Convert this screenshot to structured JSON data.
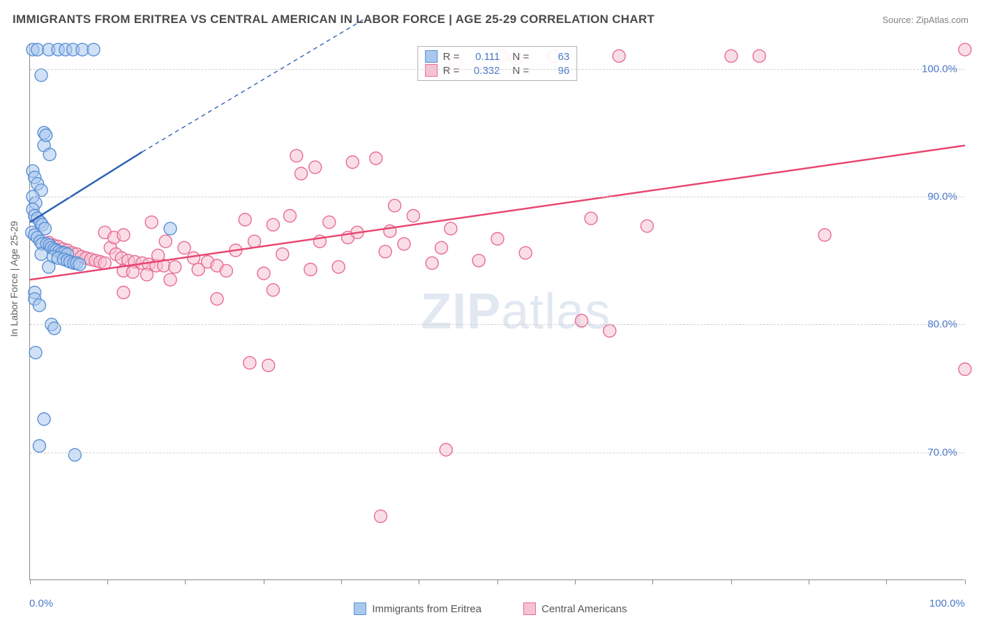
{
  "title": "IMMIGRANTS FROM ERITREA VS CENTRAL AMERICAN IN LABOR FORCE | AGE 25-29 CORRELATION CHART",
  "source": "Source: ZipAtlas.com",
  "y_axis_title": "In Labor Force | Age 25-29",
  "watermark_a": "ZIP",
  "watermark_b": "atlas",
  "chart": {
    "type": "scatter",
    "background_color": "#ffffff",
    "grid_color": "#cfcfcf",
    "axis_color": "#888888",
    "label_color": "#4a78c8",
    "xlim": [
      0,
      100
    ],
    "ylim": [
      60,
      102
    ],
    "y_ticks": [
      70,
      80,
      90,
      100
    ],
    "y_tick_labels": [
      "70.0%",
      "80.0%",
      "90.0%",
      "100.0%"
    ],
    "x_minor_ticks": [
      0,
      8.3,
      16.6,
      25,
      33.3,
      41.6,
      50,
      58.3,
      66.6,
      75,
      83.3,
      91.6,
      100
    ],
    "x_tick_labels": [
      {
        "pos": 0,
        "label": "0.0%"
      },
      {
        "pos": 100,
        "label": "100.0%"
      }
    ],
    "marker_radius": 9,
    "marker_stroke_width": 1.4,
    "trend_line_width": 2.5,
    "series": [
      {
        "name": "Immigrants from Eritrea",
        "fill": "#a9c8ec",
        "stroke": "#5b8fd6",
        "fill_opacity": 0.55,
        "r_value": "0.111",
        "n_value": "63",
        "trend": {
          "x1": 0,
          "y1": 88,
          "x2": 12,
          "y2": 93.5,
          "dash_x2": 36,
          "dash_y2": 104,
          "color": "#2f62b5"
        },
        "points": [
          [
            0.3,
            101.5
          ],
          [
            0.8,
            101.5
          ],
          [
            2,
            101.5
          ],
          [
            3,
            101.5
          ],
          [
            3.8,
            101.5
          ],
          [
            4.6,
            101.5
          ],
          [
            5.6,
            101.5
          ],
          [
            6.8,
            101.5
          ],
          [
            1.2,
            99.5
          ],
          [
            1.5,
            95
          ],
          [
            1.5,
            94
          ],
          [
            1.7,
            94.8
          ],
          [
            2.1,
            93.3
          ],
          [
            0.3,
            92
          ],
          [
            0.5,
            91.5
          ],
          [
            0.8,
            91
          ],
          [
            1.2,
            90.5
          ],
          [
            0.3,
            90
          ],
          [
            0.6,
            89.5
          ],
          [
            0.3,
            89
          ],
          [
            0.5,
            88.5
          ],
          [
            0.8,
            88.3
          ],
          [
            1.1,
            88
          ],
          [
            1.3,
            87.8
          ],
          [
            1.6,
            87.5
          ],
          [
            0.2,
            87.2
          ],
          [
            0.5,
            87
          ],
          [
            0.8,
            86.8
          ],
          [
            1.1,
            86.5
          ],
          [
            1.3,
            86.3
          ],
          [
            1.8,
            86.3
          ],
          [
            2.1,
            86.2
          ],
          [
            2.3,
            86
          ],
          [
            2.6,
            85.9
          ],
          [
            2.8,
            85.8
          ],
          [
            3.1,
            85.7
          ],
          [
            3.4,
            85.6
          ],
          [
            3.7,
            85.6
          ],
          [
            4,
            85.5
          ],
          [
            1.2,
            85.5
          ],
          [
            2.5,
            85.3
          ],
          [
            3,
            85.2
          ],
          [
            3.6,
            85.1
          ],
          [
            4,
            85
          ],
          [
            4.3,
            84.9
          ],
          [
            4.7,
            84.8
          ],
          [
            5,
            84.8
          ],
          [
            5.3,
            84.7
          ],
          [
            2,
            84.5
          ],
          [
            0.5,
            82.5
          ],
          [
            0.5,
            82
          ],
          [
            1,
            81.5
          ],
          [
            2.3,
            80
          ],
          [
            2.6,
            79.7
          ],
          [
            0.6,
            77.8
          ],
          [
            1.5,
            72.6
          ],
          [
            1,
            70.5
          ],
          [
            4.8,
            69.8
          ],
          [
            15,
            87.5
          ]
        ]
      },
      {
        "name": "Central Americans",
        "fill": "#f6c2d2",
        "stroke": "#e86a93",
        "fill_opacity": 0.55,
        "r_value": "0.332",
        "n_value": "96",
        "trend": {
          "x1": 0,
          "y1": 83.5,
          "x2": 100,
          "y2": 94,
          "color": "#e8466f"
        },
        "points": [
          [
            2,
            86.4
          ],
          [
            2.5,
            86.2
          ],
          [
            3,
            86.1
          ],
          [
            3.5,
            85.9
          ],
          [
            4,
            85.8
          ],
          [
            4.5,
            85.6
          ],
          [
            5,
            85.5
          ],
          [
            5.5,
            85.3
          ],
          [
            6,
            85.2
          ],
          [
            6.5,
            85.1
          ],
          [
            7,
            85
          ],
          [
            7.5,
            84.9
          ],
          [
            8,
            84.8
          ],
          [
            8.6,
            86
          ],
          [
            9.2,
            85.5
          ],
          [
            9.8,
            85.2
          ],
          [
            10.5,
            85
          ],
          [
            11.2,
            84.9
          ],
          [
            12,
            84.8
          ],
          [
            12.7,
            84.7
          ],
          [
            13.5,
            84.6
          ],
          [
            14.3,
            84.6
          ],
          [
            15,
            83.5
          ],
          [
            10,
            84.2
          ],
          [
            11,
            84.1
          ],
          [
            12.5,
            83.9
          ],
          [
            13.7,
            85.4
          ],
          [
            14.5,
            86.5
          ],
          [
            8,
            87.2
          ],
          [
            9,
            86.8
          ],
          [
            10,
            87
          ],
          [
            13,
            88
          ],
          [
            15.5,
            84.5
          ],
          [
            16.5,
            86
          ],
          [
            17.5,
            85.2
          ],
          [
            18,
            84.3
          ],
          [
            19,
            84.9
          ],
          [
            20,
            84.6
          ],
          [
            21,
            84.2
          ],
          [
            22,
            85.8
          ],
          [
            23,
            88.2
          ],
          [
            24,
            86.5
          ],
          [
            25,
            84
          ],
          [
            26,
            87.8
          ],
          [
            27,
            85.5
          ],
          [
            27.8,
            88.5
          ],
          [
            28.5,
            93.2
          ],
          [
            29,
            91.8
          ],
          [
            30,
            84.3
          ],
          [
            30.5,
            92.3
          ],
          [
            31,
            86.5
          ],
          [
            32,
            88
          ],
          [
            33,
            84.5
          ],
          [
            34,
            86.8
          ],
          [
            34.5,
            92.7
          ],
          [
            35,
            87.2
          ],
          [
            37,
            93
          ],
          [
            38,
            85.7
          ],
          [
            38.5,
            87.3
          ],
          [
            39,
            89.3
          ],
          [
            40,
            86.3
          ],
          [
            41,
            88.5
          ],
          [
            43,
            84.8
          ],
          [
            44,
            86
          ],
          [
            45,
            87.5
          ],
          [
            45.5,
            100.5
          ],
          [
            48,
            85
          ],
          [
            50,
            86.7
          ],
          [
            50.5,
            101
          ],
          [
            52,
            100.8
          ],
          [
            53,
            85.6
          ],
          [
            56,
            101
          ],
          [
            59,
            80.3
          ],
          [
            60,
            88.3
          ],
          [
            63,
            101
          ],
          [
            66,
            87.7
          ],
          [
            44.5,
            70.2
          ],
          [
            37.5,
            65
          ],
          [
            23.5,
            77
          ],
          [
            25.5,
            76.8
          ],
          [
            26,
            82.7
          ],
          [
            10,
            82.5
          ],
          [
            20,
            82
          ],
          [
            62,
            79.5
          ],
          [
            75,
            101
          ],
          [
            78,
            101
          ],
          [
            85,
            87
          ],
          [
            100,
            101.5
          ],
          [
            100,
            76.5
          ]
        ]
      }
    ],
    "bottom_legend": [
      {
        "label": "Immigrants from Eritrea",
        "fill": "#a9c8ec",
        "stroke": "#5b8fd6"
      },
      {
        "label": "Central Americans",
        "fill": "#f6c2d2",
        "stroke": "#e86a93"
      }
    ],
    "corr_legend_labels": {
      "r": "R =",
      "n": "N ="
    }
  }
}
